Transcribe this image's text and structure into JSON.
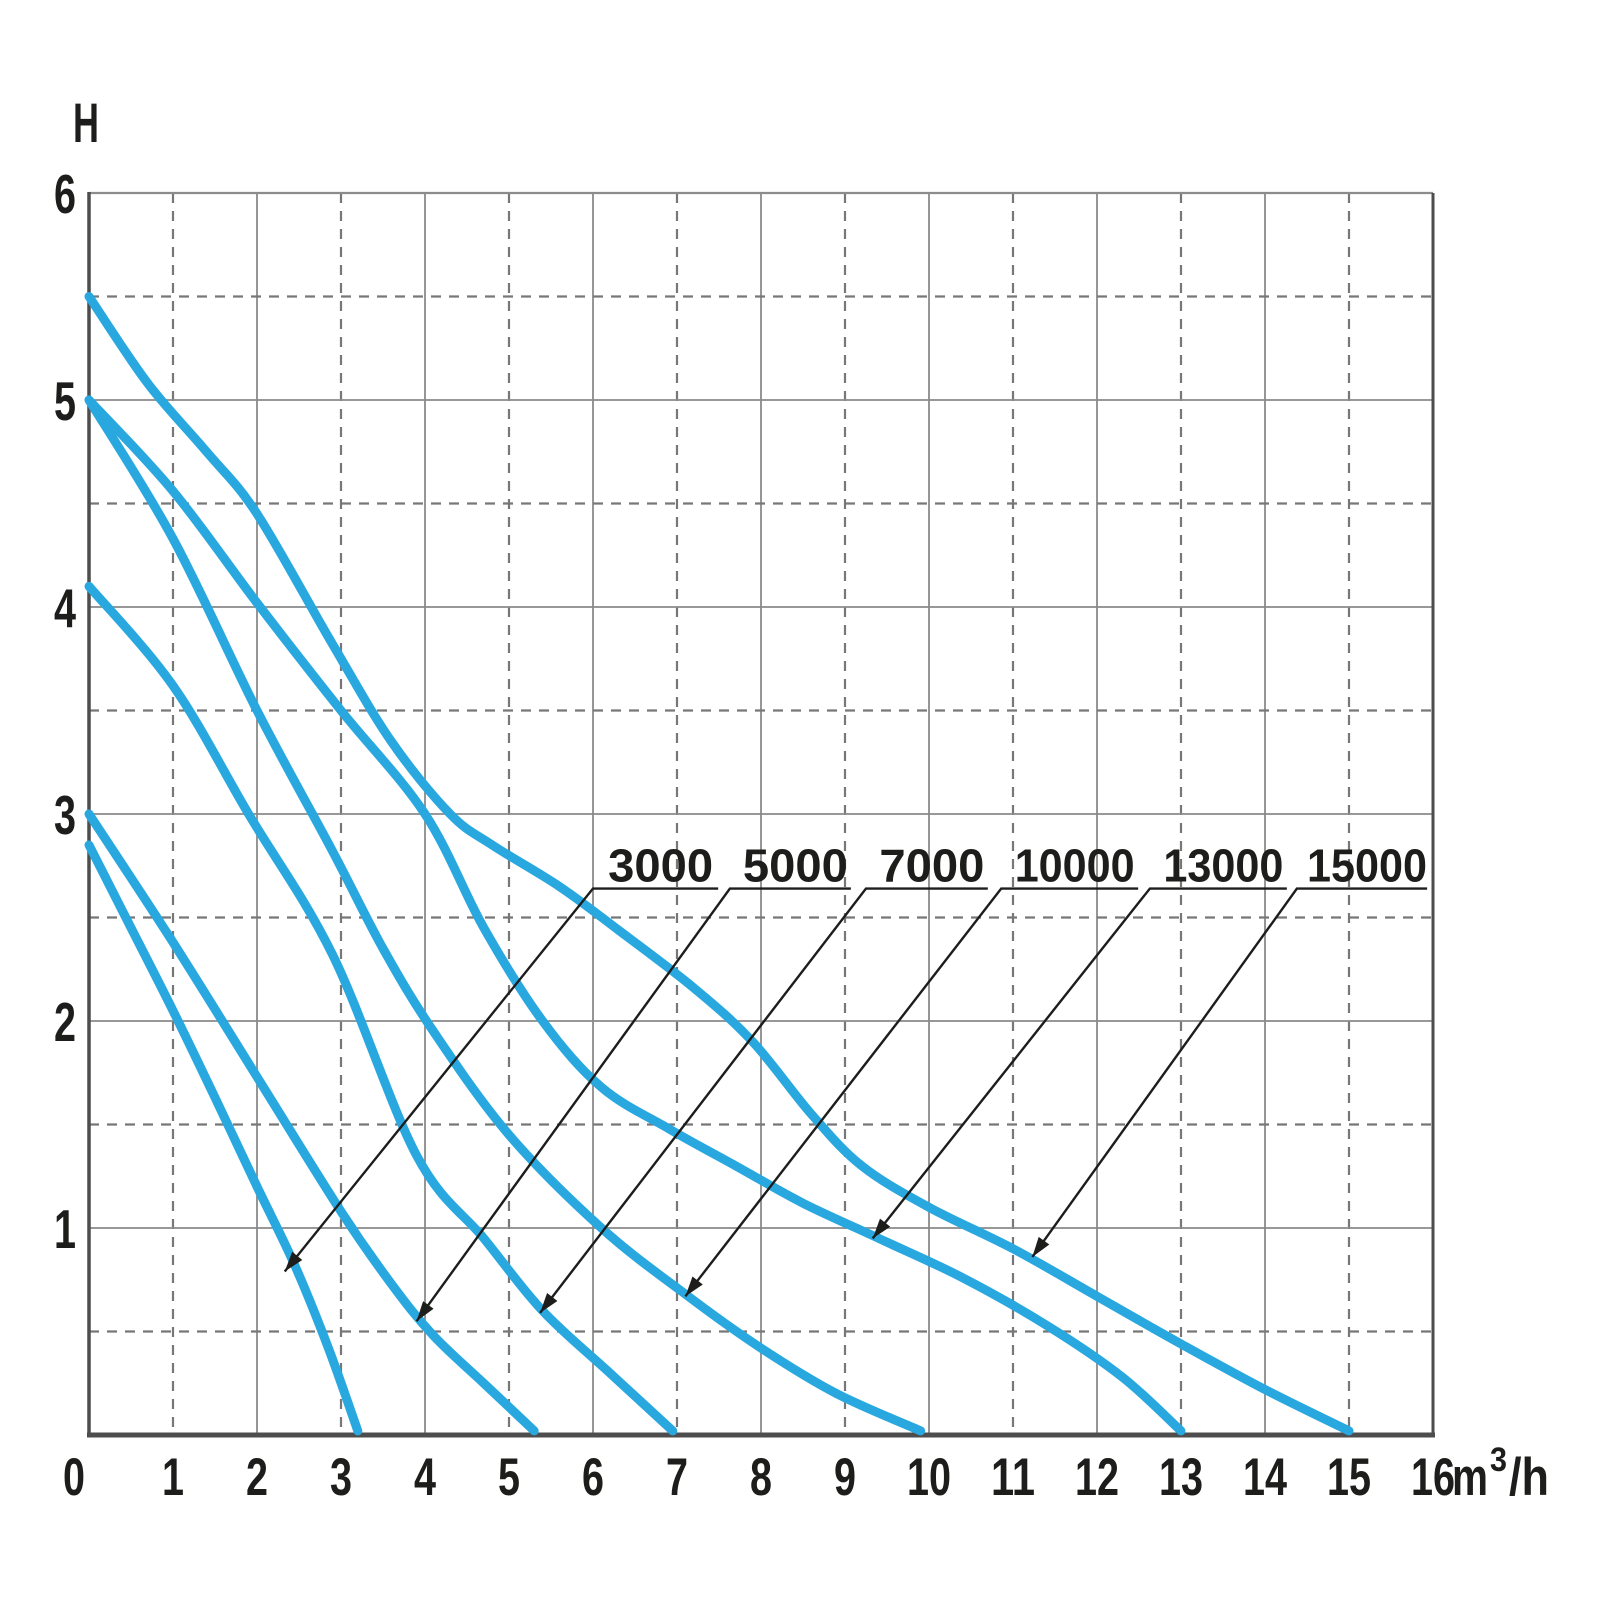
{
  "chart_data": {
    "type": "line",
    "title": "",
    "xlabel": "m³/h",
    "ylabel": "H",
    "xlim": [
      0,
      16
    ],
    "ylim": [
      0,
      6
    ],
    "x_ticks": [
      0,
      1,
      2,
      3,
      4,
      5,
      6,
      7,
      8,
      9,
      10,
      11,
      12,
      13,
      14,
      15,
      16
    ],
    "y_ticks": [
      1,
      2,
      3,
      4,
      5,
      6
    ],
    "x_unit_parts": {
      "base": "m",
      "sup": "3",
      "rest": "/h"
    },
    "grid": {
      "vertical_solid_at": "even integers",
      "vertical_dashed_at": "odd integers",
      "horizontal_solid_at": "integers",
      "horizontal_dashed_at": "half units",
      "legend_position": "none"
    },
    "colors": {
      "curve": "#29A8E0",
      "grid": "#8A8A8A",
      "border": "#4D4D4D",
      "text": "#1D1D1B",
      "leader": "#1D1D1B"
    },
    "series": [
      {
        "name": "15000",
        "color": "#29A8E0",
        "points": [
          [
            0,
            5.5
          ],
          [
            0.7,
            5.08
          ],
          [
            1.4,
            4.75
          ],
          [
            2,
            4.45
          ],
          [
            2.9,
            3.82
          ],
          [
            3.6,
            3.35
          ],
          [
            4.3,
            3.0
          ],
          [
            4.8,
            2.85
          ],
          [
            5.6,
            2.65
          ],
          [
            6.3,
            2.44
          ],
          [
            7.2,
            2.16
          ],
          [
            7.9,
            1.9
          ],
          [
            8.6,
            1.55
          ],
          [
            9.2,
            1.3
          ],
          [
            10,
            1.1
          ],
          [
            11,
            0.9
          ],
          [
            12,
            0.67
          ],
          [
            13,
            0.44
          ],
          [
            14,
            0.22
          ],
          [
            15,
            0.02
          ]
        ]
      },
      {
        "name": "13000",
        "color": "#29A8E0",
        "points": [
          [
            0,
            5.0
          ],
          [
            1,
            4.56
          ],
          [
            2,
            4.02
          ],
          [
            3,
            3.5
          ],
          [
            4,
            3.0
          ],
          [
            4.7,
            2.45
          ],
          [
            5.4,
            2.0
          ],
          [
            6.1,
            1.68
          ],
          [
            6.9,
            1.48
          ],
          [
            7.7,
            1.3
          ],
          [
            8.5,
            1.12
          ],
          [
            9.4,
            0.95
          ],
          [
            10.4,
            0.76
          ],
          [
            11.4,
            0.53
          ],
          [
            12.3,
            0.28
          ],
          [
            13,
            0.02
          ]
        ]
      },
      {
        "name": "10000",
        "color": "#29A8E0",
        "points": [
          [
            0,
            5.0
          ],
          [
            1,
            4.33
          ],
          [
            2,
            3.5
          ],
          [
            2.9,
            2.82
          ],
          [
            3.5,
            2.35
          ],
          [
            4.1,
            1.95
          ],
          [
            5,
            1.45
          ],
          [
            6.1,
            1.0
          ],
          [
            7.1,
            0.68
          ],
          [
            8,
            0.42
          ],
          [
            8.9,
            0.2
          ],
          [
            9.9,
            0.02
          ]
        ]
      },
      {
        "name": "7000",
        "color": "#29A8E0",
        "points": [
          [
            0,
            4.1
          ],
          [
            1,
            3.62
          ],
          [
            1.9,
            3.0
          ],
          [
            2.9,
            2.32
          ],
          [
            3.9,
            1.35
          ],
          [
            4.7,
            0.95
          ],
          [
            5.4,
            0.6
          ],
          [
            6.2,
            0.3
          ],
          [
            6.95,
            0.02
          ]
        ]
      },
      {
        "name": "5000",
        "color": "#29A8E0",
        "points": [
          [
            0,
            3.0
          ],
          [
            1,
            2.38
          ],
          [
            2,
            1.73
          ],
          [
            3,
            1.08
          ],
          [
            3.6,
            0.73
          ],
          [
            4.1,
            0.48
          ],
          [
            4.7,
            0.25
          ],
          [
            5.3,
            0.02
          ]
        ]
      },
      {
        "name": "3000",
        "color": "#29A8E0",
        "points": [
          [
            0,
            2.85
          ],
          [
            0.5,
            2.45
          ],
          [
            1,
            2.05
          ],
          [
            1.5,
            1.63
          ],
          [
            2,
            1.2
          ],
          [
            2.45,
            0.82
          ],
          [
            2.85,
            0.42
          ],
          [
            3.2,
            0.02
          ]
        ]
      }
    ],
    "callouts": [
      {
        "label": "3000",
        "tip": [
          2.33,
          0.79
        ],
        "underline": [
          6.0,
          7.49
        ]
      },
      {
        "label": "5000",
        "tip": [
          3.9,
          0.55
        ],
        "underline": [
          7.63,
          9.07
        ]
      },
      {
        "label": "7000",
        "tip": [
          5.37,
          0.59
        ],
        "underline": [
          9.25,
          10.7
        ]
      },
      {
        "label": "10000",
        "tip": [
          7.1,
          0.67
        ],
        "underline": [
          10.86,
          12.49
        ]
      },
      {
        "label": "13000",
        "tip": [
          9.33,
          0.95
        ],
        "underline": [
          12.63,
          14.26
        ]
      },
      {
        "label": "15000",
        "tip": [
          11.23,
          0.86
        ],
        "underline": [
          14.38,
          15.93
        ]
      }
    ],
    "callout_underline_h": 2.64
  }
}
